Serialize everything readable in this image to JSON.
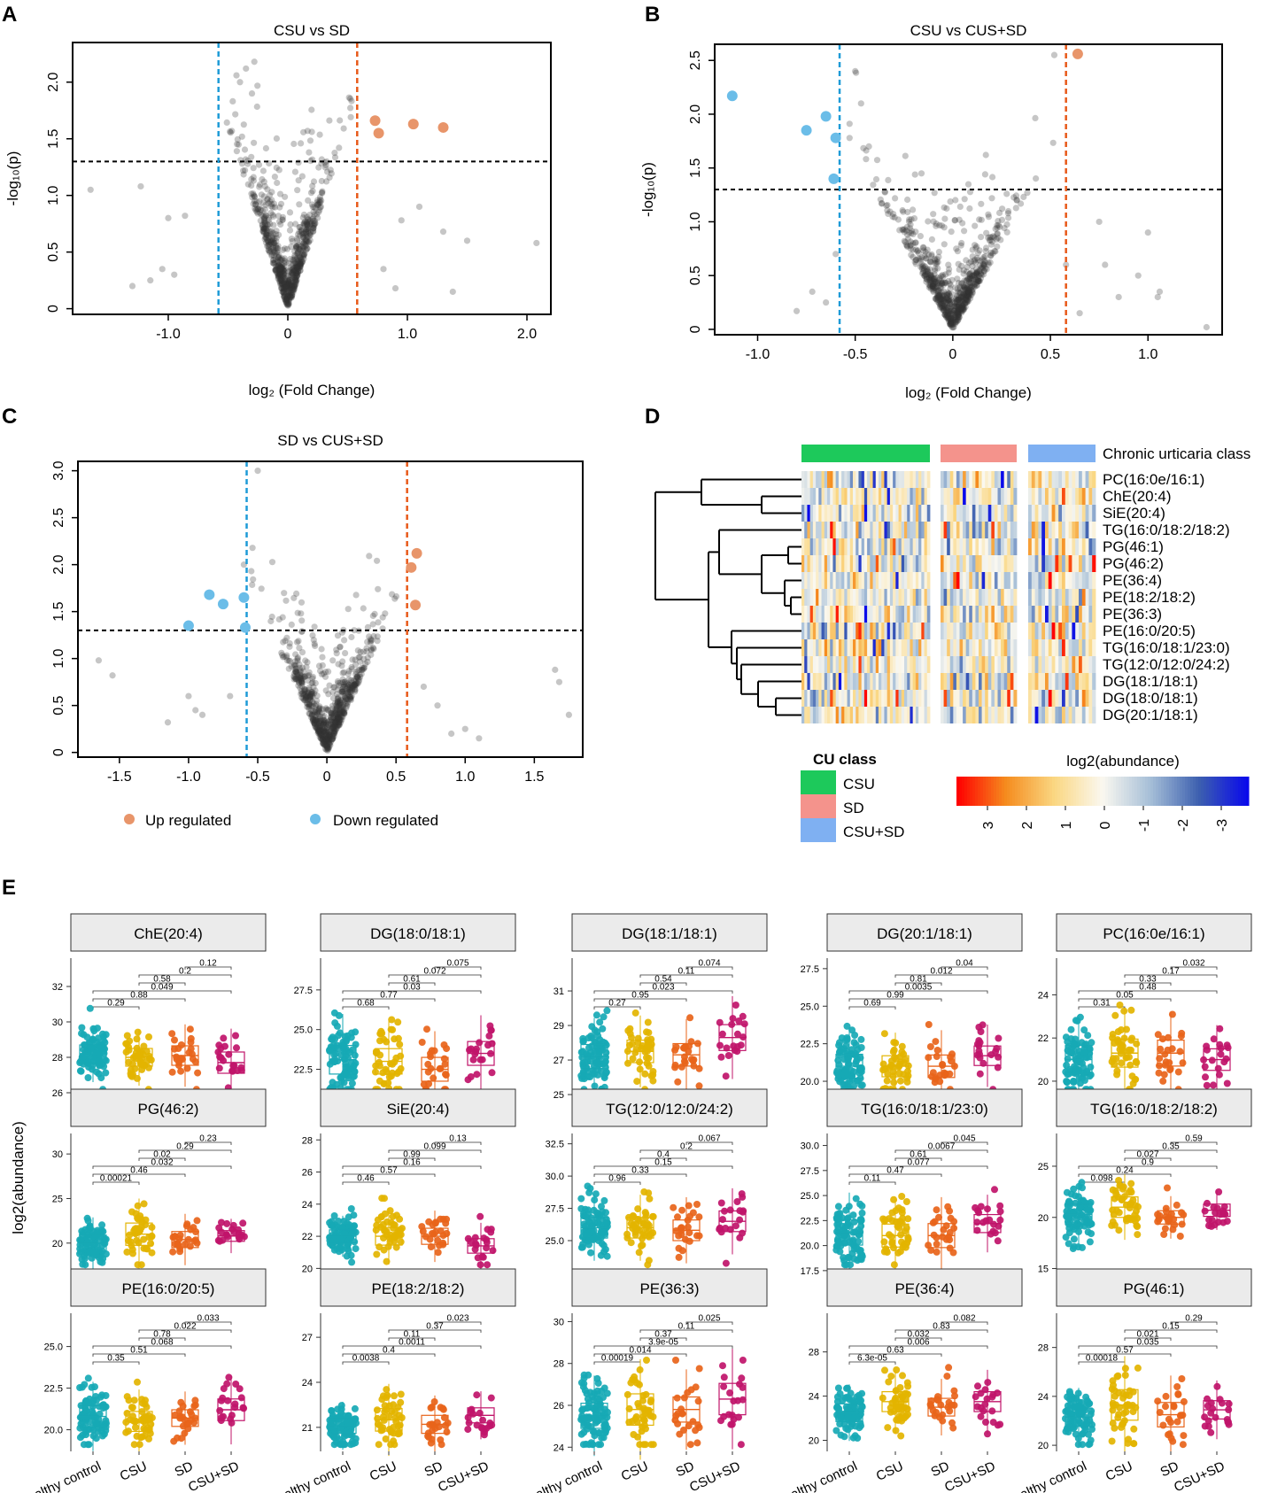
{
  "colors": {
    "up": "#E8956A",
    "down": "#6BBDE8",
    "vline_up": "#E85A1A",
    "vline_down": "#1E9BD7",
    "background_points": "#333333",
    "cu_csu": "#1DC95B",
    "cu_sd": "#F4938C",
    "cu_csusd": "#7FB0F2",
    "group_healthy": "#17A9B5",
    "group_csu": "#E3B400",
    "group_sd": "#E8641A",
    "group_csusd": "#C0146A"
  },
  "chart_data": {
    "volcano_legend": {
      "up_label": "Up regulated",
      "down_label": "Down regulated"
    },
    "volcano": [
      {
        "panel": "A",
        "type": "scatter",
        "title": "CSU vs SD",
        "xlabel": "log₂ (Fold Change)",
        "ylabel": "-log₁₀(p)",
        "xlim": [
          -1.8,
          2.2
        ],
        "ylim": [
          -0.05,
          2.35
        ],
        "xticks": [
          -1.0,
          0,
          1.0,
          2.0
        ],
        "xtick_labels": [
          "-1.0",
          "0",
          "1.0",
          "2.0"
        ],
        "yticks": [
          0,
          0.5,
          1.0,
          1.5,
          2.0
        ],
        "ytick_labels": [
          "0",
          "0.5",
          "1.0",
          "1.5",
          "2.0"
        ],
        "hline": 1.3,
        "vlines": [
          -0.58,
          0.58
        ],
        "n_background": 720,
        "background_x_sd": 0.16,
        "background_seed": 11,
        "up": [
          [
            0.73,
            1.66
          ],
          [
            0.76,
            1.55
          ],
          [
            1.05,
            1.63
          ],
          [
            1.3,
            1.6
          ]
        ],
        "down": [],
        "outliers": [
          [
            -1.65,
            1.05
          ],
          [
            -1.23,
            1.08
          ],
          [
            -1.0,
            0.8
          ],
          [
            -0.86,
            0.82
          ],
          [
            -1.05,
            0.35
          ],
          [
            -1.3,
            0.2
          ],
          [
            -1.15,
            0.25
          ],
          [
            -0.95,
            0.3
          ],
          [
            1.3,
            0.68
          ],
          [
            1.5,
            0.6
          ],
          [
            2.08,
            0.58
          ],
          [
            1.38,
            0.15
          ],
          [
            0.9,
            0.18
          ],
          [
            0.8,
            0.35
          ],
          [
            1.1,
            0.9
          ],
          [
            0.95,
            0.78
          ],
          [
            -0.28,
            2.18
          ],
          [
            -0.35,
            2.12
          ],
          [
            -0.4,
            2.0
          ],
          [
            -0.3,
            1.9
          ]
        ]
      },
      {
        "panel": "B",
        "type": "scatter",
        "title": "CSU vs CUS+SD",
        "xlabel": "log₂ (Fold Change)",
        "ylabel": "-log₁₀(p)",
        "xlim": [
          -1.22,
          1.38
        ],
        "ylim": [
          -0.05,
          2.65
        ],
        "xticks": [
          -1.0,
          -0.5,
          0,
          0.5,
          1.0
        ],
        "xtick_labels": [
          "-1.0",
          "-0.5",
          "0",
          "0.5",
          "1.0"
        ],
        "yticks": [
          0,
          0.5,
          1.0,
          1.5,
          2.0,
          2.5
        ],
        "ytick_labels": [
          "0",
          "0.5",
          "1.0",
          "1.5",
          "2.0",
          "2.5"
        ],
        "hline": 1.3,
        "vlines": [
          -0.58,
          0.58
        ],
        "n_background": 720,
        "background_x_sd": 0.13,
        "background_seed": 23,
        "up": [
          [
            0.64,
            2.56
          ]
        ],
        "down": [
          [
            -1.13,
            2.17
          ],
          [
            -0.75,
            1.85
          ],
          [
            -0.65,
            1.98
          ],
          [
            -0.6,
            1.78
          ],
          [
            -0.61,
            1.4
          ]
        ],
        "outliers": [
          [
            -0.8,
            0.17
          ],
          [
            -0.72,
            0.35
          ],
          [
            -0.65,
            0.25
          ],
          [
            -0.6,
            0.7
          ],
          [
            -0.5,
            2.4
          ],
          [
            -0.47,
            2.1
          ],
          [
            0.52,
            2.55
          ],
          [
            0.75,
            1.0
          ],
          [
            0.78,
            0.6
          ],
          [
            0.85,
            0.3
          ],
          [
            0.95,
            0.5
          ],
          [
            1.0,
            0.9
          ],
          [
            1.05,
            0.3
          ],
          [
            1.06,
            0.35
          ],
          [
            1.3,
            0.02
          ],
          [
            0.65,
            0.15
          ],
          [
            0.58,
            0.6
          ]
        ]
      },
      {
        "panel": "C",
        "type": "scatter",
        "title": "SD vs CUS+SD",
        "xlabel": "",
        "ylabel": "",
        "xlim": [
          -1.8,
          1.85
        ],
        "ylim": [
          -0.05,
          3.1
        ],
        "xticks": [
          -1.5,
          -1.0,
          -0.5,
          0,
          0.5,
          1.0,
          1.5
        ],
        "xtick_labels": [
          "-1.5",
          "-1.0",
          "-0.5",
          "0",
          "0.5",
          "1.0",
          "1.5"
        ],
        "yticks": [
          0,
          0.5,
          1.0,
          1.5,
          2.0,
          2.5,
          3.0
        ],
        "ytick_labels": [
          "0",
          "0.5",
          "1.0",
          "1.5",
          "2.0",
          "2.5",
          "3.0"
        ],
        "hline": 1.3,
        "vlines": [
          -0.58,
          0.58
        ],
        "n_background": 720,
        "background_x_sd": 0.16,
        "background_seed": 37,
        "up": [
          [
            0.65,
            2.12
          ],
          [
            0.61,
            1.97
          ],
          [
            0.64,
            1.57
          ]
        ],
        "down": [
          [
            -0.85,
            1.68
          ],
          [
            -0.75,
            1.58
          ],
          [
            -0.6,
            1.65
          ],
          [
            -1.0,
            1.35
          ],
          [
            -0.59,
            1.33
          ]
        ],
        "outliers": [
          [
            -1.65,
            0.98
          ],
          [
            -1.55,
            0.82
          ],
          [
            -1.15,
            0.32
          ],
          [
            -0.95,
            0.45
          ],
          [
            -0.9,
            0.4
          ],
          [
            -0.7,
            0.6
          ],
          [
            -0.5,
            3.0
          ],
          [
            -0.6,
            2.0
          ],
          [
            1.65,
            0.88
          ],
          [
            1.68,
            0.75
          ],
          [
            1.75,
            0.4
          ],
          [
            0.8,
            0.5
          ],
          [
            0.9,
            0.2
          ],
          [
            1.0,
            0.25
          ],
          [
            1.1,
            0.15
          ],
          [
            0.7,
            0.7
          ],
          [
            -1.0,
            0.6
          ]
        ]
      }
    ],
    "heatmap": {
      "type": "heatmap",
      "panel": "D",
      "class_label": "Chronic urticaria class",
      "rows": [
        "PC(16:0e/16:1)",
        "ChE(20:4)",
        "SiE(20:4)",
        "TG(16:0/18:2/18:2)",
        "PG(46:1)",
        "PG(46:2)",
        "PE(36:4)",
        "PE(18:2/18:2)",
        "PE(36:3)",
        "PE(16:0/20:5)",
        "TG(16:0/18:1/23:0)",
        "TG(12:0/12:0/24:2)",
        "DG(18:1/18:1)",
        "DG(18:0/18:1)",
        "DG(20:1/18:1)"
      ],
      "groups": [
        {
          "name": "CSU",
          "n": 45
        },
        {
          "name": "SD",
          "n": 24
        },
        {
          "name": "CSU+SD",
          "n": 20
        }
      ],
      "legend_title": "CU class",
      "legend_items": [
        "CSU",
        "SD",
        "CSU+SD"
      ],
      "colorbar_title": "log2(abundance)",
      "colorbar_ticks": [
        "3",
        "2",
        "1",
        "0",
        "-1",
        "-2",
        "-3"
      ],
      "range": [
        3,
        -3
      ],
      "seed": 71
    },
    "boxplots": {
      "type": "box",
      "panel": "E",
      "ylabel": "log2(abundance)",
      "groups": [
        "Healthy control",
        "CSU",
        "SD",
        "CSU+SD"
      ],
      "panels": [
        {
          "title": "ChE(20:4)",
          "yticks": [
            26,
            28,
            30,
            32
          ],
          "ylim": [
            25.8,
            33.6
          ],
          "medians": [
            28.2,
            28.0,
            28.1,
            27.7
          ],
          "iqr": [
            1.0,
            1.0,
            1.1,
            1.2
          ],
          "pvals": [
            "0.12",
            "0.2",
            "0.58",
            "0.049",
            "0.88",
            "0.29"
          ],
          "seed": 101
        },
        {
          "title": "DG(18:0/18:1)",
          "yticks": [
            22.5,
            25.0,
            27.5
          ],
          "ytick_labels": [
            "22.5",
            "25.0",
            "27.5"
          ],
          "ylim": [
            20.8,
            29.5
          ],
          "medians": [
            23.1,
            23.0,
            22.5,
            23.5
          ],
          "iqr": [
            1.8,
            1.6,
            1.5,
            1.5
          ],
          "pvals": [
            "0.075",
            "0.072",
            "0.61",
            "0.03",
            "0.77",
            "0.68"
          ],
          "seed": 102
        },
        {
          "title": "DG(18:1/18:1)",
          "yticks": [
            25,
            27,
            29,
            31
          ],
          "ylim": [
            24.9,
            32.9
          ],
          "medians": [
            27.2,
            27.5,
            27.3,
            28.3
          ],
          "iqr": [
            1.4,
            1.3,
            1.3,
            1.5
          ],
          "pvals": [
            "0.074",
            "0.11",
            "0.54",
            "0.023",
            "0.95",
            "0.27"
          ],
          "seed": 103
        },
        {
          "title": "DG(20:1/18:1)",
          "yticks": [
            20.0,
            22.5,
            25.0,
            27.5
          ],
          "ytick_labels": [
            "20.0",
            "22.5",
            "25.0",
            "27.5"
          ],
          "ylim": [
            19.0,
            28.2
          ],
          "medians": [
            21.0,
            21.0,
            21.0,
            21.7
          ],
          "iqr": [
            1.6,
            1.4,
            1.5,
            1.3
          ],
          "pvals": [
            "0.04",
            "0.012",
            "0.81",
            "0.0035",
            "0.99",
            "0.69"
          ],
          "seed": 104
        },
        {
          "title": "PC(16:0e/16:1)",
          "yticks": [
            20,
            22,
            24
          ],
          "ylim": [
            19.3,
            25.7
          ],
          "medians": [
            21.0,
            21.3,
            21.3,
            21.0
          ],
          "iqr": [
            1.3,
            1.3,
            1.2,
            1.0
          ],
          "pvals": [
            "0.032",
            "0.17",
            "0.33",
            "0.48",
            "0.05",
            "0.31"
          ],
          "seed": 105
        },
        {
          "title": "PG(46:2)",
          "yticks": [
            20,
            25,
            30
          ],
          "ylim": [
            16.8,
            32.3
          ],
          "medians": [
            20.0,
            21.0,
            20.4,
            20.8
          ],
          "iqr": [
            1.8,
            2.5,
            1.8,
            1.2
          ],
          "pvals": [
            "0.23",
            "0.29",
            "0.02",
            "0.032",
            "0.46",
            "0.00021"
          ],
          "seed": 106
        },
        {
          "title": "SiE(20:4)",
          "yticks": [
            20,
            22,
            24,
            26,
            28
          ],
          "ylim": [
            19.8,
            28.4
          ],
          "medians": [
            22.0,
            22.0,
            22.0,
            21.4
          ],
          "iqr": [
            0.8,
            1.1,
            1.0,
            0.9
          ],
          "pvals": [
            "0.13",
            "0.099",
            "0.99",
            "0.16",
            "0.57",
            "0.46"
          ],
          "seed": 107
        },
        {
          "title": "TG(12:0/12:0/24:2)",
          "yticks": [
            25.0,
            27.5,
            30.0,
            32.5
          ],
          "ytick_labels": [
            "25.0",
            "27.5",
            "30.0",
            "32.5"
          ],
          "ylim": [
            22.6,
            33.3
          ],
          "medians": [
            26.0,
            26.0,
            25.8,
            26.5
          ],
          "iqr": [
            1.6,
            1.6,
            1.6,
            1.6
          ],
          "pvals": [
            "0.067",
            "0.2",
            "0.4",
            "0.15",
            "0.33",
            "0.96"
          ],
          "seed": 108
        },
        {
          "title": "TG(16:0/18:1/23:0)",
          "yticks": [
            17.5,
            20.0,
            22.5,
            25.0,
            27.5,
            30.0
          ],
          "ytick_labels": [
            "17.5",
            "20.0",
            "22.5",
            "25.0",
            "27.5",
            "30.0"
          ],
          "ylim": [
            17.4,
            31.2
          ],
          "medians": [
            21.3,
            21.0,
            21.0,
            22.2
          ],
          "iqr": [
            2.5,
            2.3,
            2.4,
            1.8
          ],
          "pvals": [
            "0.045",
            "0.0067",
            "0.61",
            "0.077",
            "0.47",
            "0.11"
          ],
          "seed": 109
        },
        {
          "title": "TG(16:0/18:2/18:2)",
          "yticks": [
            15,
            20,
            25
          ],
          "ylim": [
            14.7,
            28.2
          ],
          "medians": [
            20.3,
            21.0,
            20.0,
            20.7
          ],
          "iqr": [
            2.0,
            2.0,
            1.3,
            1.2
          ],
          "pvals": [
            "0.59",
            "0.35",
            "0.027",
            "0.9",
            "0.24",
            "0.098"
          ],
          "seed": 110
        },
        {
          "title": "PE(16:0/20:5)",
          "yticks": [
            20.0,
            22.5,
            25.0
          ],
          "ytick_labels": [
            "20.0",
            "22.5",
            "25.0"
          ],
          "ylim": [
            18.7,
            27.0
          ],
          "medians": [
            20.8,
            20.5,
            20.7,
            21.2
          ],
          "iqr": [
            1.3,
            1.2,
            1.0,
            1.3
          ],
          "pvals": [
            "0.033",
            "0.022",
            "0.78",
            "0.068",
            "0.51",
            "0.35"
          ],
          "seed": 111
        },
        {
          "title": "PE(18:2/18:2)",
          "yticks": [
            21,
            24,
            27
          ],
          "ylim": [
            19.4,
            28.6
          ],
          "medians": [
            21.1,
            21.5,
            21.2,
            21.8
          ],
          "iqr": [
            1.0,
            1.5,
            1.2,
            1.0
          ],
          "pvals": [
            "0.023",
            "0.37",
            "0.11",
            "0.0011",
            "0.4",
            "0.0038"
          ],
          "seed": 112
        },
        {
          "title": "PE(36:3)",
          "yticks": [
            24,
            26,
            28,
            30
          ],
          "ylim": [
            23.8,
            30.4
          ],
          "medians": [
            25.5,
            25.8,
            25.8,
            26.3
          ],
          "iqr": [
            1.2,
            1.5,
            1.2,
            1.5
          ],
          "pvals": [
            "0.025",
            "0.11",
            "0.37",
            "3.9e-05",
            "0.014",
            "0.00019"
          ],
          "seed": 113
        },
        {
          "title": "PE(36:4)",
          "yticks": [
            20,
            24,
            28
          ],
          "ylim": [
            19.0,
            31.5
          ],
          "medians": [
            22.5,
            23.5,
            23.0,
            23.5
          ],
          "iqr": [
            1.6,
            1.8,
            1.6,
            1.8
          ],
          "pvals": [
            "0.082",
            "0.83",
            "0.032",
            "0.006",
            "0.63",
            "6.3e-05"
          ],
          "seed": 114
        },
        {
          "title": "PG(46:1)",
          "yticks": [
            20,
            24,
            28
          ],
          "ylim": [
            19.5,
            30.8
          ],
          "medians": [
            22.3,
            23.3,
            22.5,
            22.9
          ],
          "iqr": [
            1.5,
            2.5,
            2.0,
            1.5
          ],
          "pvals": [
            "0.29",
            "0.15",
            "0.021",
            "0.035",
            "0.57",
            "0.00018"
          ],
          "seed": 115
        }
      ]
    }
  },
  "labels": {
    "A": "A",
    "B": "B",
    "C": "C",
    "D": "D",
    "E": "E"
  }
}
